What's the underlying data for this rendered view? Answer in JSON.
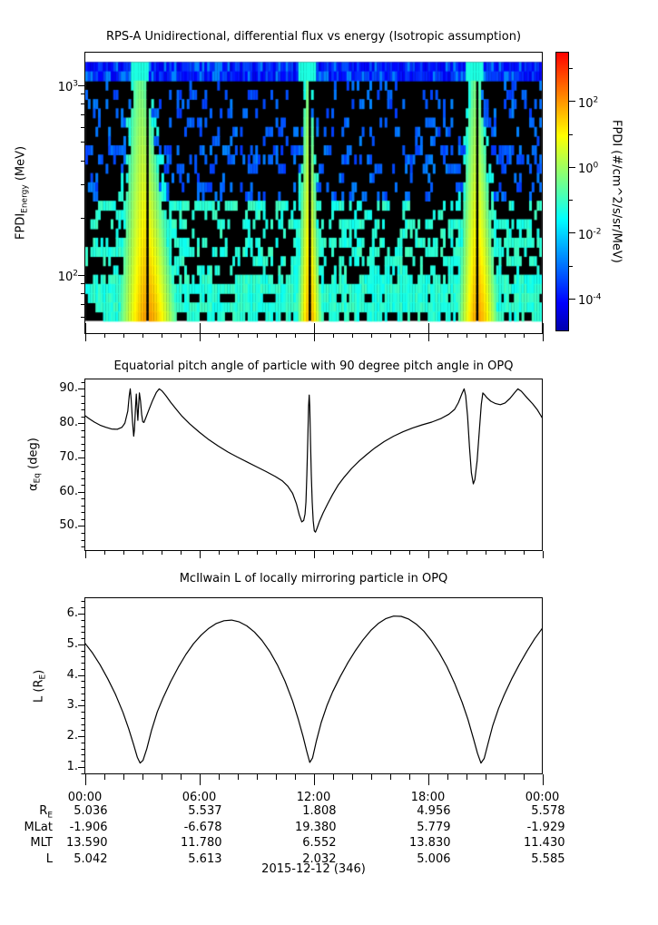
{
  "date_label": "2015-12-12 (346)",
  "chart_data": [
    {
      "type": "heatmap",
      "title": "RPS-A Unidirectional, differential flux vs energy (Isotropic assumption)",
      "ylabel": {
        "base": "FPDI",
        "sub": "Energy",
        "rest": " (MeV)"
      },
      "x_range_hours": [
        0,
        24
      ],
      "energy_range_mev": [
        57,
        1318
      ],
      "y_axis_major_exps": [
        3,
        2
      ],
      "y_axis_minor_mev": [
        60,
        70,
        80,
        90,
        200,
        300,
        400,
        500,
        600,
        700,
        800,
        900
      ],
      "z_log10_range": [
        -5,
        3.5
      ],
      "background": "black (zero flux), sparse noise speckles",
      "n_time_bins": 180,
      "n_energy_bins": 28,
      "top_band": {
        "rows": 2,
        "log_flux_range": [
          -4.4,
          -3.3
        ],
        "bright_fraction": 0.15,
        "bright_log_flux": -2.8,
        "plume_streak_log_flux": -1.3,
        "plume_streak_halfwidth_h": 0.45
      },
      "speckle": {
        "seed": 20151212,
        "base_density": 0.12,
        "density_slope": 0.3,
        "blue_log_flux_range": [
          -3.6,
          -2.8
        ],
        "cyan_log_flux_range": [
          -1.5,
          -0.9
        ],
        "dense_row_multipliers": {
          "3": 1.5,
          "9": 1.9,
          "10": 1.6,
          "17": 1.5,
          "24": 1.7,
          "26": 1.8
        },
        "fringe_probability": 0.45,
        "fringe_log_flux": -1.5
      },
      "plumes": [
        {
          "center_top_h": 2.85,
          "center_bottom_h": 3.3,
          "halfwidth_bottom_h": 1.5,
          "gap_h": 3.32,
          "peak_log_flux_bottom": 1.95,
          "peak_log_flux_top": -0.6,
          "edge_log_flux": -0.9
        },
        {
          "center_top_h": 11.7,
          "center_bottom_h": 11.8,
          "halfwidth_bottom_h": 0.62,
          "gap_h": 11.78,
          "peak_log_flux_bottom": 1.85,
          "peak_log_flux_top": -0.6,
          "edge_log_flux": -0.9
        },
        {
          "center_top_h": 20.5,
          "center_bottom_h": 20.65,
          "halfwidth_bottom_h": 1.05,
          "gap_h": 20.6,
          "peak_log_flux_bottom": 1.9,
          "peak_log_flux_top": -0.6,
          "edge_log_flux": -0.9
        }
      ],
      "colorbar": {
        "label": "FPDI (#/cm^2/s/sr/MeV)",
        "major_exps": [
          2,
          0,
          -2,
          -4
        ],
        "minor_exps": [
          3,
          1,
          -1,
          -3
        ],
        "log10_range": [
          -5,
          3.5
        ],
        "colormap": "jet"
      }
    },
    {
      "type": "line",
      "title": "Equatorial pitch angle of particle with 90 degree pitch angle in OPQ",
      "ylabel": {
        "base": "α",
        "sub": "Eq",
        "rest": " (deg)"
      },
      "ylim": [
        42.6,
        92.9
      ],
      "yticks": [
        {
          "v": 90,
          "label": "90."
        },
        {
          "v": 80,
          "label": "80."
        },
        {
          "v": 70,
          "label": "70."
        },
        {
          "v": 60,
          "label": "60."
        },
        {
          "v": 50,
          "label": "50."
        }
      ],
      "yminor_step": 2,
      "line_color": "#000000",
      "points": [
        [
          0,
          82.2
        ],
        [
          0.25,
          81.2
        ],
        [
          0.5,
          80.3
        ],
        [
          0.8,
          79.4
        ],
        [
          1.1,
          78.8
        ],
        [
          1.4,
          78.3
        ],
        [
          1.7,
          78.2
        ],
        [
          1.95,
          78.8
        ],
        [
          2.1,
          80.0
        ],
        [
          2.25,
          83.5
        ],
        [
          2.33,
          88.0
        ],
        [
          2.38,
          90.0
        ],
        [
          2.43,
          87.0
        ],
        [
          2.5,
          80.5
        ],
        [
          2.56,
          76.2
        ],
        [
          2.6,
          78.0
        ],
        [
          2.66,
          85.0
        ],
        [
          2.7,
          88.5
        ],
        [
          2.74,
          84.5
        ],
        [
          2.78,
          80.8
        ],
        [
          2.82,
          85.0
        ],
        [
          2.86,
          88.8
        ],
        [
          2.92,
          86.5
        ],
        [
          2.98,
          82.5
        ],
        [
          3.04,
          80.4
        ],
        [
          3.1,
          80.2
        ],
        [
          3.2,
          81.6
        ],
        [
          3.35,
          83.8
        ],
        [
          3.55,
          86.6
        ],
        [
          3.75,
          89.0
        ],
        [
          3.9,
          90.0
        ],
        [
          4.05,
          89.4
        ],
        [
          4.25,
          88.0
        ],
        [
          4.5,
          86.1
        ],
        [
          4.8,
          84.0
        ],
        [
          5.1,
          82.0
        ],
        [
          5.5,
          79.8
        ],
        [
          6,
          77.4
        ],
        [
          6.5,
          75.2
        ],
        [
          7,
          73.3
        ],
        [
          7.5,
          71.6
        ],
        [
          8,
          70.1
        ],
        [
          8.5,
          68.7
        ],
        [
          9,
          67.3
        ],
        [
          9.5,
          65.9
        ],
        [
          10,
          64.4
        ],
        [
          10.35,
          63.2
        ],
        [
          10.65,
          61.6
        ],
        [
          10.9,
          59.5
        ],
        [
          11.1,
          56.5
        ],
        [
          11.25,
          53.2
        ],
        [
          11.38,
          51.2
        ],
        [
          11.48,
          51.6
        ],
        [
          11.55,
          53.5
        ],
        [
          11.6,
          57.0
        ],
        [
          11.65,
          65.0
        ],
        [
          11.7,
          76.0
        ],
        [
          11.74,
          85.0
        ],
        [
          11.77,
          88.2
        ],
        [
          11.8,
          85.0
        ],
        [
          11.84,
          75.0
        ],
        [
          11.88,
          65.0
        ],
        [
          11.93,
          57.0
        ],
        [
          11.98,
          51.5
        ],
        [
          12.04,
          48.6
        ],
        [
          12.1,
          48.2
        ],
        [
          12.18,
          49.3
        ],
        [
          12.3,
          51.2
        ],
        [
          12.5,
          53.8
        ],
        [
          12.75,
          56.6
        ],
        [
          13,
          59.2
        ],
        [
          13.3,
          62.0
        ],
        [
          13.6,
          64.2
        ],
        [
          14,
          66.8
        ],
        [
          14.4,
          69.0
        ],
        [
          14.8,
          70.9
        ],
        [
          15.2,
          72.7
        ],
        [
          15.7,
          74.6
        ],
        [
          16.2,
          76.2
        ],
        [
          16.7,
          77.5
        ],
        [
          17.2,
          78.6
        ],
        [
          17.7,
          79.5
        ],
        [
          18.2,
          80.3
        ],
        [
          18.7,
          81.4
        ],
        [
          19.1,
          82.6
        ],
        [
          19.4,
          84.0
        ],
        [
          19.6,
          86.0
        ],
        [
          19.8,
          88.8
        ],
        [
          19.9,
          90.0
        ],
        [
          19.98,
          88.0
        ],
        [
          20.08,
          82.0
        ],
        [
          20.18,
          73.0
        ],
        [
          20.28,
          65.5
        ],
        [
          20.38,
          62.3
        ],
        [
          20.46,
          63.5
        ],
        [
          20.58,
          69.0
        ],
        [
          20.7,
          78.0
        ],
        [
          20.8,
          85.5
        ],
        [
          20.88,
          88.8
        ],
        [
          20.95,
          88.4
        ],
        [
          21.1,
          87.4
        ],
        [
          21.3,
          86.4
        ],
        [
          21.55,
          85.7
        ],
        [
          21.8,
          85.4
        ],
        [
          22.05,
          85.9
        ],
        [
          22.3,
          87.2
        ],
        [
          22.55,
          88.9
        ],
        [
          22.72,
          90.0
        ],
        [
          22.9,
          89.3
        ],
        [
          23.2,
          87.4
        ],
        [
          23.5,
          85.6
        ],
        [
          23.75,
          83.8
        ],
        [
          24,
          81.5
        ]
      ]
    },
    {
      "type": "line",
      "title": "McIlwain L of locally mirroring particle in OPQ",
      "ylabel": {
        "base": "L (R",
        "sub": "E",
        "rest": ")"
      },
      "ylim": [
        0.76,
        6.53
      ],
      "yticks": [
        {
          "v": 6,
          "label": "6."
        },
        {
          "v": 5,
          "label": "5."
        },
        {
          "v": 4,
          "label": "4."
        },
        {
          "v": 3,
          "label": "3."
        },
        {
          "v": 2,
          "label": "2."
        },
        {
          "v": 1,
          "label": "1."
        }
      ],
      "yminor_step": 0.2,
      "line_color": "#000000",
      "points": [
        [
          0,
          5.04
        ],
        [
          0.4,
          4.72
        ],
        [
          0.8,
          4.33
        ],
        [
          1.2,
          3.88
        ],
        [
          1.6,
          3.38
        ],
        [
          2,
          2.78
        ],
        [
          2.3,
          2.25
        ],
        [
          2.55,
          1.75
        ],
        [
          2.75,
          1.32
        ],
        [
          2.9,
          1.13
        ],
        [
          3.05,
          1.22
        ],
        [
          3.25,
          1.6
        ],
        [
          3.5,
          2.2
        ],
        [
          3.8,
          2.8
        ],
        [
          4.1,
          3.25
        ],
        [
          4.5,
          3.78
        ],
        [
          4.9,
          4.25
        ],
        [
          5.3,
          4.67
        ],
        [
          5.7,
          5.02
        ],
        [
          6.1,
          5.3
        ],
        [
          6.5,
          5.52
        ],
        [
          6.9,
          5.68
        ],
        [
          7.3,
          5.77
        ],
        [
          7.7,
          5.79
        ],
        [
          8.1,
          5.73
        ],
        [
          8.5,
          5.6
        ],
        [
          8.9,
          5.4
        ],
        [
          9.3,
          5.12
        ],
        [
          9.7,
          4.77
        ],
        [
          10.1,
          4.33
        ],
        [
          10.5,
          3.8
        ],
        [
          10.9,
          3.15
        ],
        [
          11.2,
          2.55
        ],
        [
          11.45,
          2.0
        ],
        [
          11.65,
          1.5
        ],
        [
          11.8,
          1.15
        ],
        [
          11.95,
          1.3
        ],
        [
          12.15,
          1.85
        ],
        [
          12.4,
          2.45
        ],
        [
          12.7,
          3.0
        ],
        [
          13,
          3.45
        ],
        [
          13.4,
          3.95
        ],
        [
          13.8,
          4.4
        ],
        [
          14.2,
          4.8
        ],
        [
          14.6,
          5.15
        ],
        [
          15,
          5.45
        ],
        [
          15.4,
          5.68
        ],
        [
          15.8,
          5.84
        ],
        [
          16.2,
          5.92
        ],
        [
          16.6,
          5.91
        ],
        [
          17,
          5.82
        ],
        [
          17.4,
          5.65
        ],
        [
          17.8,
          5.42
        ],
        [
          18.2,
          5.1
        ],
        [
          18.6,
          4.72
        ],
        [
          19,
          4.27
        ],
        [
          19.4,
          3.73
        ],
        [
          19.8,
          3.1
        ],
        [
          20.1,
          2.55
        ],
        [
          20.4,
          1.9
        ],
        [
          20.6,
          1.45
        ],
        [
          20.78,
          1.13
        ],
        [
          20.95,
          1.28
        ],
        [
          21.15,
          1.75
        ],
        [
          21.4,
          2.35
        ],
        [
          21.7,
          2.9
        ],
        [
          22,
          3.35
        ],
        [
          22.4,
          3.88
        ],
        [
          22.8,
          4.35
        ],
        [
          23.2,
          4.78
        ],
        [
          23.6,
          5.18
        ],
        [
          24,
          5.52
        ]
      ]
    }
  ],
  "time_axis": {
    "major_hours": [
      0,
      6,
      12,
      18,
      24
    ],
    "major_labels": [
      "00:00",
      "06:00",
      "12:00",
      "18:00",
      "00:00"
    ],
    "minor_step_hours": 1
  },
  "ephemeris_table": {
    "rows": [
      {
        "label": "R",
        "sub": "E",
        "values": [
          "5.036",
          "5.537",
          "1.808",
          "4.956",
          "5.578"
        ]
      },
      {
        "label": "MLat",
        "sub": "",
        "values": [
          "-1.906",
          "-6.678",
          "19.380",
          "5.779",
          "-1.929"
        ]
      },
      {
        "label": "MLT",
        "sub": "",
        "values": [
          "13.590",
          "11.780",
          "6.552",
          "13.830",
          "11.430"
        ]
      },
      {
        "label": "L",
        "sub": "",
        "values": [
          "5.042",
          "5.613",
          "2.032",
          "5.006",
          "5.585"
        ]
      }
    ]
  }
}
